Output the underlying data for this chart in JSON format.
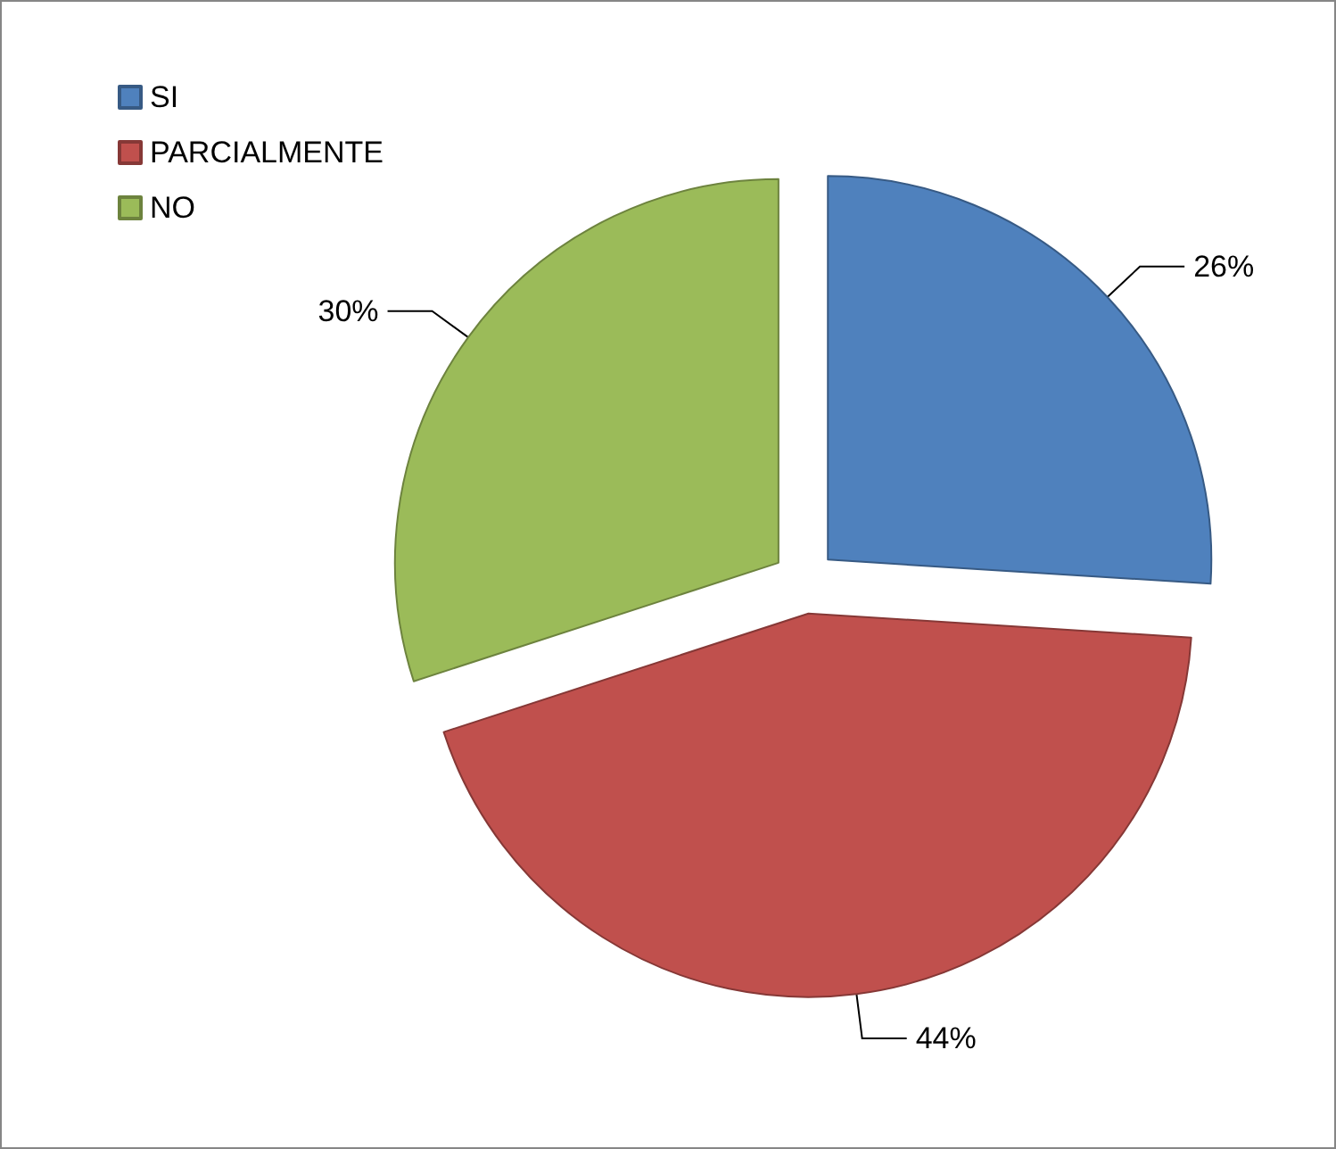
{
  "chart_data": {
    "type": "pie",
    "categories": [
      "SI",
      "PARCIALMENTE",
      "NO"
    ],
    "values": [
      26,
      44,
      30
    ],
    "value_labels": [
      "26%",
      "44%",
      "30%"
    ],
    "colors": [
      "#4f81bd",
      "#c0504d",
      "#9bbb59"
    ],
    "legend": "top left"
  }
}
